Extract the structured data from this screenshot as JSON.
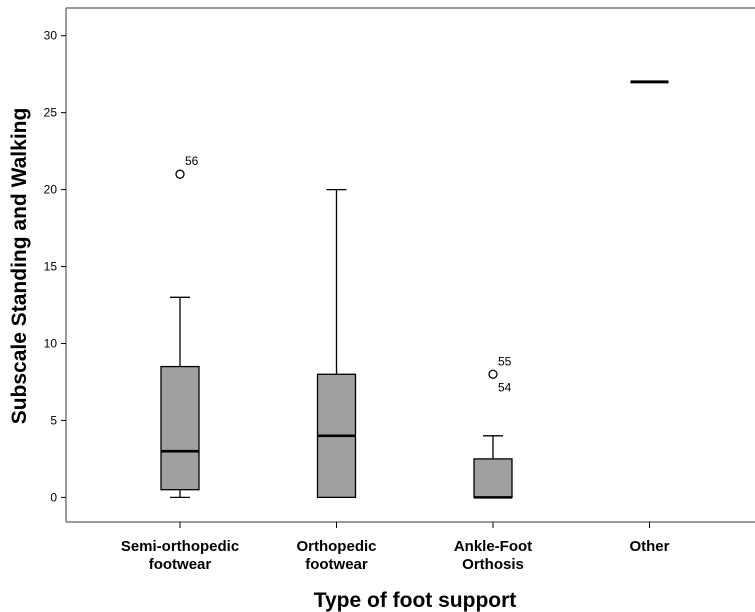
{
  "chart_data": {
    "type": "boxplot",
    "xlabel": "Type of foot support",
    "ylabel": "Subscale Standing and Walking",
    "ylim": [
      -1.6,
      31.8
    ],
    "yticks": [
      0,
      5,
      10,
      15,
      20,
      25,
      30
    ],
    "grid": false,
    "colors": {
      "box_fill": "#a0a0a0",
      "stroke": "#000000",
      "frame": "#7a7a7a"
    },
    "categories": [
      [
        "Semi-orthopedic",
        "footwear"
      ],
      [
        "Orthopedic",
        "footwear"
      ],
      [
        "Ankle-Foot",
        "Orthosis"
      ],
      [
        "Other"
      ]
    ],
    "boxes": [
      {
        "min": 0,
        "q1": 0.5,
        "median": 3,
        "q3": 8.5,
        "max": 13,
        "outliers": [
          {
            "value": 21,
            "labels": [
              "56"
            ]
          }
        ]
      },
      {
        "min": 0,
        "q1": 0,
        "median": 4,
        "q3": 8,
        "max": 20,
        "outliers": []
      },
      {
        "min": 0,
        "q1": 0,
        "median": 0,
        "q3": 2.5,
        "max": 4,
        "outliers": [
          {
            "value": 8,
            "labels": [
              "55",
              "54"
            ]
          }
        ]
      },
      {
        "min": 27,
        "q1": 27,
        "median": 27,
        "q3": 27,
        "max": 27,
        "outliers": []
      }
    ]
  }
}
